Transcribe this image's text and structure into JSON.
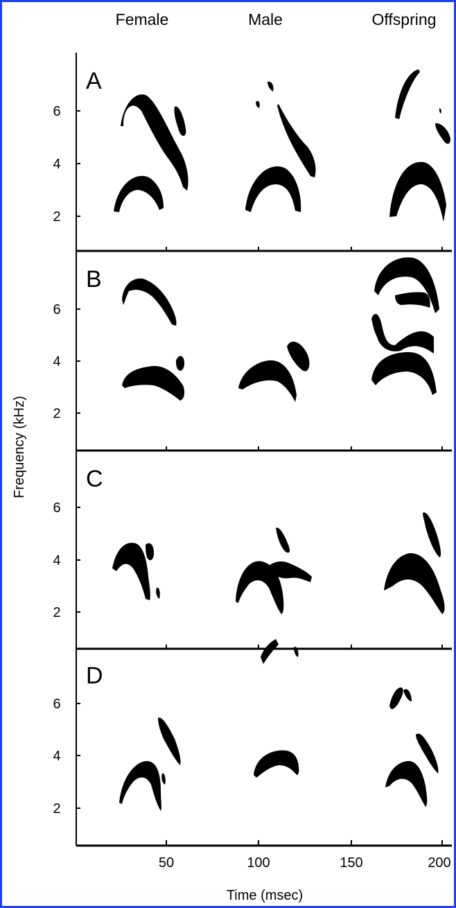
{
  "columns": [
    "Female",
    "Male",
    "Offspring"
  ],
  "panels": [
    {
      "letter": "A"
    },
    {
      "letter": "B"
    },
    {
      "letter": "C"
    },
    {
      "letter": "D"
    }
  ],
  "y_axis": {
    "title": "Frequency (kHz)",
    "ticks": [
      "6",
      "4",
      "2"
    ],
    "range_khz": [
      0.5,
      7.8
    ]
  },
  "x_axis": {
    "title": "Time (msec)",
    "ticks": [
      "50",
      "100",
      "150",
      "200"
    ],
    "range_msec": [
      0,
      205
    ]
  },
  "colors": {
    "border": "#1f3ef0",
    "ink": "#000000",
    "background": "#ffffff"
  }
}
